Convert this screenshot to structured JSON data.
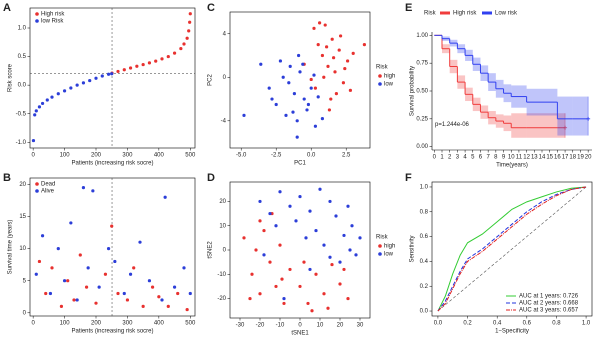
{
  "chart_data": [
    {
      "type": "scatter",
      "label": "A",
      "x_label": "Patients (increasing risk socre)",
      "y_label": "Risk score",
      "legend": "upper left",
      "xlim": [
        -10,
        515
      ],
      "xticks": [
        0,
        100,
        200,
        300,
        400,
        500
      ],
      "ylim": [
        -1.1,
        1.35
      ],
      "yticks": [
        {
          "value": -1,
          "label": "-1.0"
        },
        {
          "value": -0.5,
          "label": "-0.5"
        },
        {
          "value": 0,
          "label": "0.0"
        },
        {
          "value": 0.5,
          "label": "0.5"
        },
        {
          "value": 1,
          "label": "1.0"
        }
      ],
      "reference_lines": {
        "x": [
          251
        ],
        "y": [
          0.2
        ]
      },
      "series": [
        {
          "name": "High risk",
          "color": "#e8312f",
          "x": [
            251,
            270,
            290,
            310,
            330,
            350,
            370,
            390,
            410,
            430,
            450,
            470,
            480,
            490,
            495,
            498,
            500
          ],
          "values": [
            0.21,
            0.24,
            0.27,
            0.3,
            0.33,
            0.36,
            0.39,
            0.42,
            0.46,
            0.5,
            0.56,
            0.64,
            0.72,
            0.82,
            0.95,
            1.1,
            1.25
          ]
        },
        {
          "name": "low Risk",
          "color": "#2c3ed8",
          "x": [
            1,
            5,
            10,
            20,
            30,
            45,
            60,
            80,
            100,
            120,
            140,
            160,
            180,
            200,
            220,
            240,
            250
          ],
          "values": [
            -0.97,
            -0.52,
            -0.45,
            -0.38,
            -0.32,
            -0.26,
            -0.21,
            -0.15,
            -0.1,
            -0.05,
            0,
            0.04,
            0.08,
            0.12,
            0.16,
            0.19,
            0.2
          ]
        }
      ]
    },
    {
      "type": "scatter",
      "label": "B",
      "x_label": "Patients (increasing risk socre)",
      "y_label": "Survival time (years)",
      "legend": "upper left",
      "xlim": [
        -10,
        515
      ],
      "xticks": [
        0,
        100,
        200,
        300,
        400,
        500
      ],
      "ylim": [
        -0.5,
        21
      ],
      "yticks": [
        0,
        5,
        10,
        15,
        20
      ],
      "reference_lines": {
        "x": [
          251
        ],
        "y": []
      },
      "series": [
        {
          "name": "Dead",
          "color": "#e8312f",
          "x": [
            20,
            40,
            60,
            90,
            110,
            130,
            150,
            170,
            200,
            230,
            250,
            270,
            300,
            320,
            350,
            380,
            400,
            430,
            460,
            490
          ],
          "values": [
            8,
            3,
            7,
            1,
            5,
            2,
            9,
            4,
            1.5,
            6,
            13.5,
            3,
            2,
            7,
            1,
            4,
            2.5,
            1,
            3,
            0.5
          ]
        },
        {
          "name": "Alive",
          "color": "#2c3ed8",
          "x": [
            10,
            30,
            55,
            80,
            100,
            120,
            140,
            160,
            175,
            190,
            210,
            240,
            260,
            290,
            310,
            340,
            370,
            410,
            420,
            450,
            480,
            500
          ],
          "values": [
            6,
            12,
            3,
            10,
            5,
            14,
            2,
            19.5,
            7,
            19,
            4,
            10,
            8,
            3,
            6,
            11,
            5,
            2,
            18,
            4,
            7,
            3
          ]
        }
      ]
    },
    {
      "type": "scatter",
      "label": "C",
      "x_label": "PC1",
      "y_label": "PC2",
      "legend": "right",
      "legend_title": "Risk",
      "xlim": [
        -5.8,
        4.2
      ],
      "xticks": [
        {
          "value": -5,
          "label": "-5.0"
        },
        {
          "value": -2.5,
          "label": "-2.5"
        },
        {
          "value": 0,
          "label": "0.0"
        },
        {
          "value": 2.5,
          "label": "2.5"
        }
      ],
      "ylim": [
        -6.5,
        6
      ],
      "yticks": [
        -4,
        0,
        4
      ],
      "series": [
        {
          "name": "high",
          "color": "#e8312f",
          "x": [
            0.2,
            0.5,
            0.8,
            1.0,
            1.2,
            1.5,
            1.7,
            2.0,
            2.3,
            2.6,
            0.3,
            0.9,
            1.4,
            1.8,
            2.1,
            0.6,
            1.1,
            1.6,
            2.4,
            3.0,
            -0.5,
            0.0,
            3.8,
            2.8,
            1.3
          ],
          "values": [
            4.5,
            3.0,
            2.0,
            4.8,
            1.0,
            3.5,
            0.5,
            2.5,
            -0.5,
            1.5,
            -1.0,
            0.0,
            -2.0,
            -1.5,
            3.8,
            5.0,
            2.8,
            1.8,
            0.8,
            2.2,
            1.2,
            -0.2,
            3.0,
            -1.2,
            -3.0
          ]
        },
        {
          "name": "low",
          "color": "#2c3ed8",
          "x": [
            -3.0,
            -2.5,
            -2.0,
            -1.8,
            -1.5,
            -1.2,
            -1.0,
            -0.8,
            -0.5,
            -0.3,
            0.0,
            0.3,
            -2.2,
            -1.6,
            -0.9,
            -0.2,
            0.5,
            -2.8,
            -1.3,
            -0.6,
            0.8,
            -4.8,
            -3.6,
            -1.0,
            0.2
          ],
          "values": [
            -1.0,
            -2.5,
            0.0,
            -3.5,
            1.0,
            -1.5,
            -4.0,
            0.5,
            -2.0,
            -3.0,
            -1.0,
            -4.5,
            1.5,
            -0.5,
            2.0,
            -2.5,
            -1.8,
            -2.0,
            -3.2,
            1.2,
            -3.8,
            -3.5,
            1.2,
            -5.5,
            0.2
          ]
        }
      ]
    },
    {
      "type": "scatter",
      "label": "D",
      "x_label": "tSNE1",
      "y_label": "tSNE2",
      "legend": "right",
      "legend_title": "Risk",
      "xlim": [
        -35,
        35
      ],
      "xticks": [
        -30,
        -20,
        -10,
        0,
        10,
        20,
        30
      ],
      "ylim": [
        -28,
        28
      ],
      "yticks": [
        -20,
        -10,
        0,
        10,
        20
      ],
      "series": [
        {
          "name": "high",
          "color": "#e8312f",
          "x": [
            -28,
            -24,
            -22,
            -20,
            -18,
            -15,
            -12,
            -10,
            -8,
            -5,
            -25,
            -20,
            -14,
            -9,
            0,
            4,
            8,
            12,
            16,
            20,
            24,
            6,
            14,
            22,
            2
          ],
          "values": [
            5,
            -10,
            0,
            -18,
            8,
            -5,
            -15,
            2,
            -22,
            -8,
            -20,
            12,
            15,
            -12,
            -15,
            -22,
            -10,
            -18,
            -6,
            -14,
            -20,
            -25,
            -24,
            -8,
            -5
          ]
        },
        {
          "name": "low",
          "color": "#2c3ed8",
          "x": [
            -20,
            -15,
            -10,
            -5,
            0,
            5,
            10,
            15,
            -12,
            -2,
            8,
            18,
            22,
            25,
            28,
            20,
            26,
            12,
            -18,
            3,
            15,
            30,
            -8,
            5,
            24
          ],
          "values": [
            20,
            15,
            24,
            18,
            22,
            16,
            25,
            20,
            10,
            12,
            8,
            14,
            6,
            0,
            -2,
            -5,
            10,
            2,
            -2,
            5,
            -3,
            5,
            -20,
            -8,
            18
          ]
        }
      ]
    },
    {
      "type": "line",
      "steps": true,
      "label": "E",
      "x_label": "Time(years)",
      "y_label": "Survival probability",
      "legend": "top",
      "legend_title": "Risk",
      "annotation": "p=1.244e-06",
      "xlim": [
        -0.3,
        20.5
      ],
      "xticks": [
        0,
        1,
        2,
        3,
        4,
        5,
        6,
        7,
        8,
        9,
        10,
        11,
        12,
        13,
        14,
        15,
        16,
        17,
        18,
        19,
        20
      ],
      "ylim": [
        -0.03,
        1.03
      ],
      "yticks": [
        {
          "value": 0,
          "label": "0.00"
        },
        {
          "value": 0.25,
          "label": "0.25"
        },
        {
          "value": 0.5,
          "label": "0.50"
        },
        {
          "value": 0.75,
          "label": "0.75"
        },
        {
          "value": 1,
          "label": "1.00"
        }
      ],
      "series": [
        {
          "name": "High risk",
          "color": "#f03c3c",
          "x": [
            0,
            1,
            2,
            3,
            4,
            5,
            6,
            7,
            8,
            9,
            10,
            12,
            14,
            16,
            17
          ],
          "values": [
            1,
            0.88,
            0.72,
            0.58,
            0.47,
            0.38,
            0.31,
            0.26,
            0.23,
            0.21,
            0.17,
            0.17,
            0.17,
            0.17,
            0.17
          ],
          "lower": [
            1,
            0.84,
            0.66,
            0.52,
            0.41,
            0.32,
            0.25,
            0.2,
            0.17,
            0.14,
            0.08,
            0.08,
            0.08,
            0.08,
            0.08
          ],
          "upper": [
            1,
            0.92,
            0.78,
            0.64,
            0.53,
            0.44,
            0.37,
            0.32,
            0.29,
            0.28,
            0.3,
            0.3,
            0.3,
            0.3,
            0.3
          ]
        },
        {
          "name": "Low risk",
          "color": "#3040f0",
          "x": [
            0,
            1,
            2,
            3,
            4,
            5,
            6,
            7,
            8,
            9,
            10,
            12,
            14,
            16,
            18,
            20
          ],
          "values": [
            1,
            0.97,
            0.93,
            0.88,
            0.82,
            0.74,
            0.66,
            0.58,
            0.52,
            0.48,
            0.45,
            0.4,
            0.4,
            0.25,
            0.25,
            0.25
          ],
          "lower": [
            1,
            0.95,
            0.9,
            0.84,
            0.77,
            0.68,
            0.59,
            0.5,
            0.44,
            0.4,
            0.35,
            0.28,
            0.28,
            0.1,
            0.1,
            0.1
          ],
          "upper": [
            1,
            0.99,
            0.96,
            0.92,
            0.87,
            0.8,
            0.73,
            0.66,
            0.6,
            0.56,
            0.55,
            0.52,
            0.52,
            0.45,
            0.45,
            0.45
          ]
        }
      ]
    },
    {
      "type": "line",
      "label": "F",
      "x_label": "1−Specificity",
      "y_label": "Sensitivity",
      "legend": "lower right",
      "diagonal": true,
      "xlim": [
        -0.04,
        1.04
      ],
      "xticks": [
        {
          "value": 0,
          "label": "0.0"
        },
        0.2,
        0.4,
        0.6,
        0.8,
        {
          "value": 1,
          "label": "1.0"
        }
      ],
      "ylim": [
        -0.04,
        1.04
      ],
      "yticks": [
        {
          "value": 0,
          "label": "0.0"
        },
        0.2,
        0.4,
        0.6,
        0.8,
        {
          "value": 1,
          "label": "1.0"
        }
      ],
      "series": [
        {
          "name": "AUC at 1 years: 0.726",
          "color": "#33cc33",
          "x": [
            0,
            0.05,
            0.1,
            0.15,
            0.2,
            0.3,
            0.4,
            0.5,
            0.6,
            0.7,
            0.8,
            0.9,
            1
          ],
          "values": [
            0,
            0.12,
            0.3,
            0.45,
            0.55,
            0.62,
            0.72,
            0.82,
            0.88,
            0.92,
            0.96,
            0.99,
            1
          ]
        },
        {
          "name": "AUC at 2 years: 0.668",
          "color": "#2233dd",
          "dash": "4 2",
          "x": [
            0,
            0.05,
            0.1,
            0.15,
            0.2,
            0.3,
            0.4,
            0.5,
            0.6,
            0.7,
            0.8,
            0.9,
            1
          ],
          "values": [
            0,
            0.08,
            0.2,
            0.32,
            0.42,
            0.5,
            0.6,
            0.7,
            0.8,
            0.88,
            0.94,
            0.98,
            1
          ]
        },
        {
          "name": "AUC at 3 years: 0.657",
          "color": "#e02020",
          "dash": "4 1 1 1",
          "x": [
            0,
            0.05,
            0.1,
            0.15,
            0.2,
            0.3,
            0.4,
            0.5,
            0.6,
            0.7,
            0.8,
            0.9,
            1
          ],
          "values": [
            0,
            0.06,
            0.18,
            0.3,
            0.4,
            0.48,
            0.58,
            0.68,
            0.78,
            0.86,
            0.93,
            0.98,
            1
          ]
        }
      ]
    }
  ]
}
